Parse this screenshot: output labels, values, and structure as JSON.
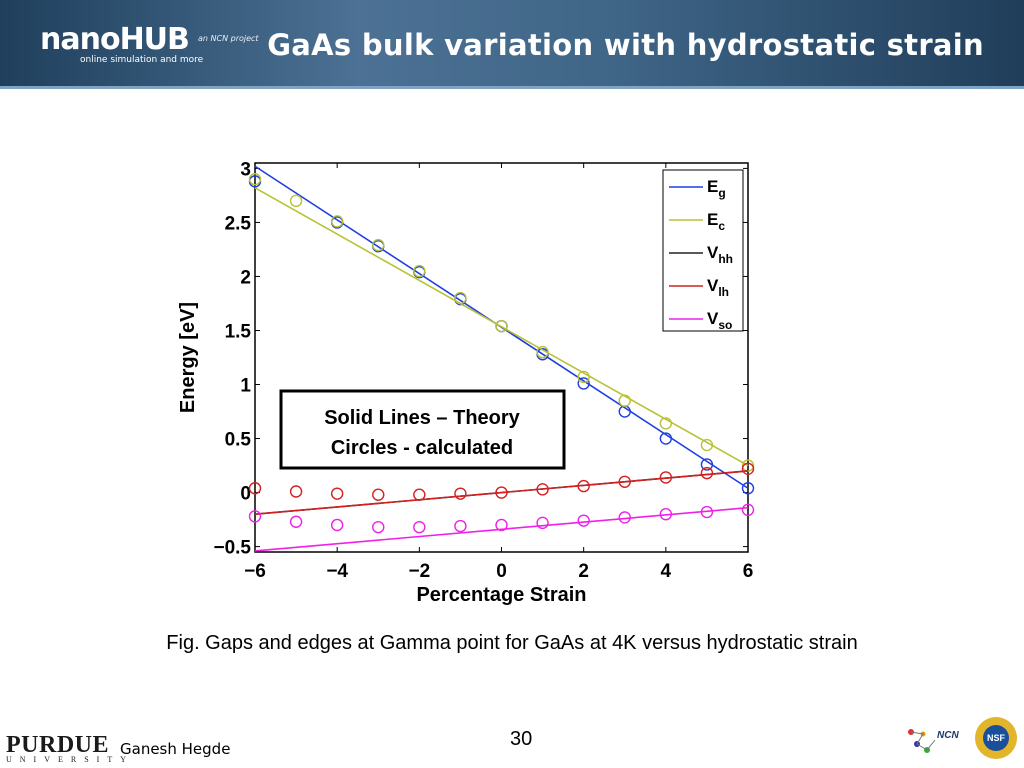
{
  "header": {
    "logo_text": "nanoHUB",
    "logo_tagline": "online simulation and more",
    "logo_ncn": "an NCN project",
    "title": "GaAs bulk variation with hydrostatic strain"
  },
  "caption": "Fig. Gaps and edges at Gamma point for GaAs at 4K versus hydrostatic strain",
  "footer": {
    "page_number": "30",
    "institution": "PURDUE",
    "institution_sub": "UNIVERSITY",
    "author": "Ganesh Hegde",
    "ncn_label": "NCN",
    "nsf_label": "NSF"
  },
  "colors": {
    "header_bg": "#3f6587",
    "Eg": "#1f3fe0",
    "Ec": "#b8c236",
    "Vhh": "#222222",
    "Vlh": "#d42020",
    "Vso": "#f020e8"
  },
  "chart_data": {
    "type": "line",
    "xlabel": "Percentage Strain",
    "ylabel": "Energy [eV]",
    "xlim": [
      -6,
      6
    ],
    "ylim": [
      -0.55,
      3.05
    ],
    "xticks": [
      -6,
      -4,
      -2,
      0,
      2,
      4,
      6
    ],
    "xtick_labels": [
      "−6",
      "−4",
      "−2",
      "0",
      "2",
      "4",
      "6"
    ],
    "yticks": [
      -0.5,
      0,
      0.5,
      1,
      1.5,
      2,
      2.5,
      3
    ],
    "ytick_labels": [
      "−0.5",
      "0",
      "0.5",
      "1",
      "1.5",
      "2",
      "2.5",
      "3"
    ],
    "legend_position": "top-right",
    "annotation": [
      "Solid Lines – Theory",
      "Circles - calculated"
    ],
    "x": [
      -6,
      -5,
      -4,
      -3,
      -2,
      -1,
      0,
      1,
      2,
      3,
      4,
      5,
      6
    ],
    "series": [
      {
        "name": "E",
        "sub": "g",
        "color": "#1f3fe0",
        "line": [
          [
            -6,
            3.02
          ],
          [
            6,
            0.04
          ]
        ],
        "circles": [
          [
            -6,
            2.88
          ],
          [
            -4,
            2.5
          ],
          [
            -3,
            2.28
          ],
          [
            -2,
            2.04
          ],
          [
            -1,
            1.79
          ],
          [
            0,
            1.54
          ],
          [
            1,
            1.28
          ],
          [
            2,
            1.01
          ],
          [
            3,
            0.75
          ],
          [
            4,
            0.5
          ],
          [
            5,
            0.26
          ],
          [
            6,
            0.04
          ]
        ]
      },
      {
        "name": "E",
        "sub": "c",
        "color": "#b8c236",
        "line": [
          [
            -6,
            2.82
          ],
          [
            6,
            0.25
          ]
        ],
        "circles": [
          [
            -6,
            2.9
          ],
          [
            -5,
            2.7
          ],
          [
            -4,
            2.51
          ],
          [
            -3,
            2.29
          ],
          [
            -2,
            2.05
          ],
          [
            -1,
            1.8
          ],
          [
            0,
            1.54
          ],
          [
            1,
            1.3
          ],
          [
            2,
            1.07
          ],
          [
            3,
            0.85
          ],
          [
            4,
            0.64
          ],
          [
            5,
            0.44
          ],
          [
            6,
            0.25
          ]
        ]
      },
      {
        "name": "V",
        "sub": "hh",
        "color": "#222222",
        "line": [
          [
            -6,
            -0.2
          ],
          [
            6,
            0.2
          ]
        ],
        "circles": []
      },
      {
        "name": "V",
        "sub": "lh",
        "color": "#d42020",
        "line": [
          [
            -6,
            -0.2
          ],
          [
            6,
            0.2
          ]
        ],
        "circles": [
          [
            -6,
            0.04
          ],
          [
            -5,
            0.01
          ],
          [
            -4,
            -0.01
          ],
          [
            -3,
            -0.02
          ],
          [
            -2,
            -0.02
          ],
          [
            -1,
            -0.01
          ],
          [
            0,
            0.0
          ],
          [
            1,
            0.03
          ],
          [
            2,
            0.06
          ],
          [
            3,
            0.1
          ],
          [
            4,
            0.14
          ],
          [
            5,
            0.18
          ],
          [
            6,
            0.22
          ]
        ]
      },
      {
        "name": "V",
        "sub": "so",
        "color": "#f020e8",
        "line": [
          [
            -6,
            -0.54
          ],
          [
            6,
            -0.14
          ]
        ],
        "circles": [
          [
            -6,
            -0.22
          ],
          [
            -5,
            -0.27
          ],
          [
            -4,
            -0.3
          ],
          [
            -3,
            -0.32
          ],
          [
            -2,
            -0.32
          ],
          [
            -1,
            -0.31
          ],
          [
            0,
            -0.3
          ],
          [
            1,
            -0.28
          ],
          [
            2,
            -0.26
          ],
          [
            3,
            -0.23
          ],
          [
            4,
            -0.2
          ],
          [
            5,
            -0.18
          ],
          [
            6,
            -0.16
          ]
        ]
      }
    ]
  }
}
